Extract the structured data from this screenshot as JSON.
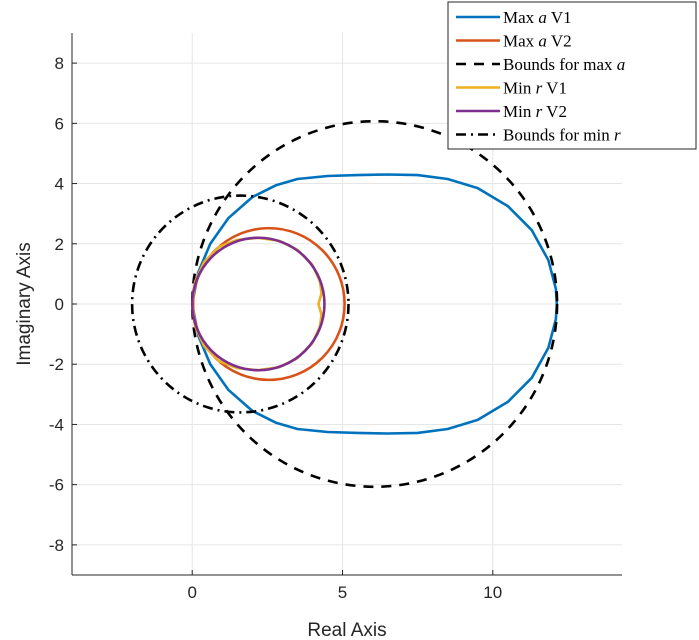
{
  "chart_data": {
    "type": "line",
    "title": "",
    "xlabel": "Real Axis",
    "ylabel": "Imaginary Axis",
    "xlim": [
      -4,
      14.3
    ],
    "ylim": [
      -9,
      9
    ],
    "xticks": [
      0,
      5,
      10
    ],
    "yticks": [
      -8,
      -6,
      -4,
      -2,
      0,
      2,
      4,
      6,
      8
    ],
    "grid": true,
    "legend_location": "top-right",
    "series": [
      {
        "name": "Max a V1",
        "legend_parts": [
          "Max ",
          "a",
          " V1"
        ],
        "color": "#0072BD",
        "line_style": "solid",
        "points": [
          [
            0,
            0
          ],
          [
            0.2,
            -1.05
          ],
          [
            0.6,
            -2.0
          ],
          [
            1.2,
            -2.85
          ],
          [
            2.0,
            -3.55
          ],
          [
            2.8,
            -3.95
          ],
          [
            3.5,
            -4.15
          ],
          [
            4.5,
            -4.25
          ],
          [
            5.5,
            -4.28
          ],
          [
            6.5,
            -4.3
          ],
          [
            7.5,
            -4.28
          ],
          [
            8.5,
            -4.15
          ],
          [
            9.5,
            -3.85
          ],
          [
            10.5,
            -3.25
          ],
          [
            11.3,
            -2.45
          ],
          [
            11.85,
            -1.45
          ],
          [
            12.1,
            -0.5
          ],
          [
            12.13,
            0
          ],
          [
            12.1,
            0.5
          ],
          [
            11.85,
            1.45
          ],
          [
            11.3,
            2.45
          ],
          [
            10.5,
            3.25
          ],
          [
            9.5,
            3.85
          ],
          [
            8.5,
            4.15
          ],
          [
            7.5,
            4.28
          ],
          [
            6.5,
            4.3
          ],
          [
            5.5,
            4.28
          ],
          [
            4.5,
            4.25
          ],
          [
            3.5,
            4.15
          ],
          [
            2.8,
            3.95
          ],
          [
            2.0,
            3.55
          ],
          [
            1.2,
            2.85
          ],
          [
            0.6,
            2.0
          ],
          [
            0.2,
            1.05
          ],
          [
            0,
            0
          ]
        ]
      },
      {
        "name": "Max a V2",
        "legend_parts": [
          "Max ",
          "a",
          " V2"
        ],
        "color": "#D95319",
        "line_style": "solid",
        "circle": {
          "cx": 2.55,
          "cy": 0,
          "r": 2.52
        }
      },
      {
        "name": "Bounds for max a",
        "legend_parts": [
          "Bounds for max ",
          "a",
          ""
        ],
        "color": "#000000",
        "line_style": "dashed",
        "circle": {
          "cx": 6.07,
          "cy": 0,
          "r": 6.07
        }
      },
      {
        "name": "Min r V1",
        "legend_parts": [
          "Min ",
          "r",
          " V1"
        ],
        "color": "#EDB120",
        "line_style": "solid",
        "points": [
          [
            0,
            0
          ],
          [
            0.1,
            -0.75
          ],
          [
            0.4,
            -1.4
          ],
          [
            0.9,
            -1.9
          ],
          [
            1.5,
            -2.13
          ],
          [
            2.2,
            -2.2
          ],
          [
            2.9,
            -2.1
          ],
          [
            3.5,
            -1.8
          ],
          [
            4.0,
            -1.3
          ],
          [
            4.25,
            -0.75
          ],
          [
            4.3,
            -0.35
          ],
          [
            4.2,
            0
          ],
          [
            4.3,
            0.35
          ],
          [
            4.25,
            0.75
          ],
          [
            4.0,
            1.3
          ],
          [
            3.5,
            1.8
          ],
          [
            2.9,
            2.1
          ],
          [
            2.2,
            2.2
          ],
          [
            1.5,
            2.13
          ],
          [
            0.9,
            1.9
          ],
          [
            0.4,
            1.4
          ],
          [
            0.1,
            0.75
          ],
          [
            0,
            0
          ]
        ]
      },
      {
        "name": "Min r V2",
        "legend_parts": [
          "Min ",
          "r",
          " V2"
        ],
        "color": "#7E2F8E",
        "line_style": "solid",
        "circle": {
          "cx": 2.2,
          "cy": 0,
          "r": 2.2
        }
      },
      {
        "name": "Bounds for min r",
        "legend_parts": [
          "Bounds for min ",
          "r",
          ""
        ],
        "color": "#000000",
        "line_style": "dashdot",
        "circle": {
          "cx": 1.6,
          "cy": 0,
          "r": 3.6
        }
      }
    ]
  }
}
